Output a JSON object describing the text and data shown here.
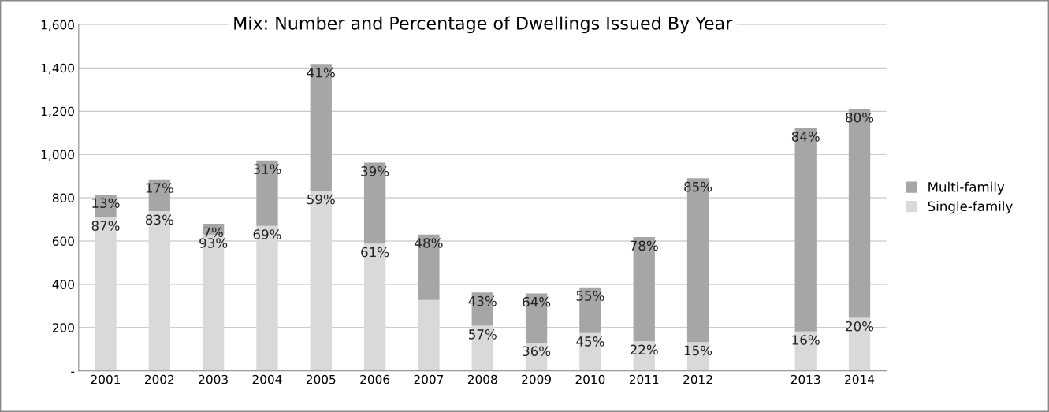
{
  "chart_data": {
    "type": "bar",
    "title": "Mix: Number and Percentage of Dwellings Issued By Year",
    "stacked": true,
    "categories": [
      "2001",
      "2002",
      "2003",
      "2004",
      "2005",
      "2006",
      "2007",
      "2008",
      "2009",
      "2010",
      "2011",
      "2012",
      null,
      "2013",
      "2014"
    ],
    "series": [
      {
        "name": "Single-family",
        "color": "#d9d9d9",
        "values": [
          710,
          738,
          630,
          670,
          832,
          588,
          328,
          208,
          130,
          175,
          137,
          133,
          null,
          182,
          245
        ]
      },
      {
        "name": "Multi-family",
        "color": "#a6a6a6",
        "values": [
          105,
          147,
          50,
          302,
          586,
          374,
          302,
          154,
          228,
          211,
          481,
          757,
          null,
          940,
          965
        ]
      }
    ],
    "annotations": [
      {
        "text": "87%",
        "x": "2001",
        "y": 710
      },
      {
        "text": "83%",
        "x": "2002",
        "y": 738
      },
      {
        "text": "93%",
        "x": "2003",
        "y": 630
      },
      {
        "text": "69%",
        "x": "2004",
        "y": 670
      },
      {
        "text": "59%",
        "x": "2005",
        "y": 832
      },
      {
        "text": "61%",
        "x": "2006",
        "y": 588
      },
      {
        "text": "57%",
        "x": "2008",
        "y": 208
      },
      {
        "text": "36%",
        "x": "2009",
        "y": 130
      },
      {
        "text": "45%",
        "x": "2010",
        "y": 175
      },
      {
        "text": "22%",
        "x": "2011",
        "y": 137
      },
      {
        "text": "15%",
        "x": "2012",
        "y": 133
      },
      {
        "text": "16%",
        "x": "2013",
        "y": 182
      },
      {
        "text": "20%",
        "x": "2014",
        "y": 245
      },
      {
        "text": "13%",
        "x": "2001",
        "y": 815
      },
      {
        "text": "17%",
        "x": "2002",
        "y": 885
      },
      {
        "text": "7%",
        "x": "2003",
        "y": 680
      },
      {
        "text": "31%",
        "x": "2004",
        "y": 972
      },
      {
        "text": "41%",
        "x": "2005",
        "y": 1418
      },
      {
        "text": "39%",
        "x": "2006",
        "y": 962
      },
      {
        "text": "48%",
        "x": "2007",
        "y": 630
      },
      {
        "text": "43%",
        "x": "2008",
        "y": 362
      },
      {
        "text": "64%",
        "x": "2009",
        "y": 358
      },
      {
        "text": "55%",
        "x": "2010",
        "y": 386
      },
      {
        "text": "78%",
        "x": "2011",
        "y": 618
      },
      {
        "text": "85%",
        "x": "2012",
        "y": 890
      },
      {
        "text": "84%",
        "x": "2013",
        "y": 1122
      },
      {
        "text": "80%",
        "x": "2014",
        "y": 1210
      }
    ],
    "ylim": [
      0,
      1600
    ],
    "yticks": [
      {
        "value": 0,
        "label": "-"
      },
      200,
      400,
      600,
      800,
      {
        "value": 1000,
        "label": "1,000"
      },
      {
        "value": 1200,
        "label": "1,200"
      },
      {
        "value": 1400,
        "label": "1,400"
      },
      {
        "value": 1600,
        "label": "1,600"
      }
    ],
    "grid": "y",
    "legend": "right"
  }
}
